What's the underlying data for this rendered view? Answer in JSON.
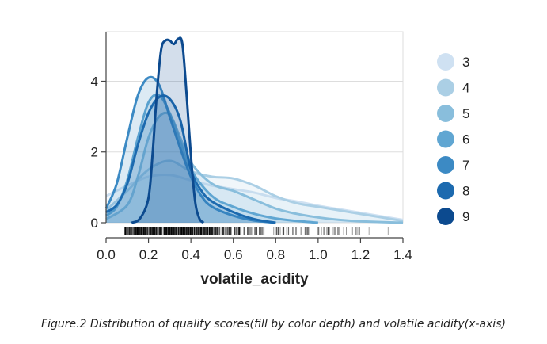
{
  "caption": "Figure.2 Distribution of quality scores(fill by color depth) and volatile acidity(x-axis)",
  "chart_data": {
    "type": "area",
    "xlabel": "volatile_acidity",
    "ylabel": "",
    "xlim": [
      0.0,
      1.4
    ],
    "ylim": [
      0,
      5.4
    ],
    "x_ticks": [
      "0.0",
      "0.2",
      "0.4",
      "0.6",
      "0.8",
      "1.0",
      "1.2",
      "1.4"
    ],
    "y_ticks": [
      "0",
      "2",
      "4"
    ],
    "grid": "horizontal",
    "legend_position": "right",
    "rug": true,
    "series": [
      {
        "name": "3",
        "color": "#cfe1f2",
        "points": [
          [
            0.0,
            0.75
          ],
          [
            0.1,
            1.05
          ],
          [
            0.2,
            1.3
          ],
          [
            0.3,
            1.35
          ],
          [
            0.4,
            1.2
          ],
          [
            0.5,
            1.05
          ],
          [
            0.6,
            0.95
          ],
          [
            0.7,
            0.85
          ],
          [
            0.8,
            0.7
          ],
          [
            0.9,
            0.6
          ],
          [
            1.0,
            0.48
          ],
          [
            1.1,
            0.38
          ],
          [
            1.2,
            0.28
          ],
          [
            1.3,
            0.18
          ],
          [
            1.4,
            0.08
          ]
        ]
      },
      {
        "name": "4",
        "color": "#abcfe5",
        "points": [
          [
            0.0,
            0.35
          ],
          [
            0.1,
            0.9
          ],
          [
            0.2,
            1.5
          ],
          [
            0.3,
            1.75
          ],
          [
            0.4,
            1.45
          ],
          [
            0.5,
            1.3
          ],
          [
            0.6,
            1.25
          ],
          [
            0.7,
            1.05
          ],
          [
            0.8,
            0.75
          ],
          [
            0.9,
            0.55
          ],
          [
            1.0,
            0.45
          ],
          [
            1.1,
            0.35
          ],
          [
            1.2,
            0.25
          ],
          [
            1.3,
            0.15
          ],
          [
            1.4,
            0.05
          ]
        ]
      },
      {
        "name": "5",
        "color": "#89bedc",
        "points": [
          [
            0.0,
            0.1
          ],
          [
            0.1,
            0.5
          ],
          [
            0.15,
            1.3
          ],
          [
            0.2,
            2.4
          ],
          [
            0.25,
            3.0
          ],
          [
            0.3,
            3.05
          ],
          [
            0.35,
            2.4
          ],
          [
            0.4,
            1.7
          ],
          [
            0.5,
            1.1
          ],
          [
            0.6,
            0.9
          ],
          [
            0.7,
            0.65
          ],
          [
            0.8,
            0.4
          ],
          [
            0.9,
            0.25
          ],
          [
            1.0,
            0.15
          ],
          [
            1.1,
            0.08
          ],
          [
            1.2,
            0.04
          ],
          [
            1.4,
            0.0
          ]
        ]
      },
      {
        "name": "6",
        "color": "#60a6d2",
        "points": [
          [
            0.0,
            0.2
          ],
          [
            0.05,
            0.45
          ],
          [
            0.1,
            1.2
          ],
          [
            0.15,
            2.4
          ],
          [
            0.2,
            3.4
          ],
          [
            0.25,
            3.6
          ],
          [
            0.3,
            3.1
          ],
          [
            0.35,
            2.3
          ],
          [
            0.4,
            1.5
          ],
          [
            0.5,
            0.75
          ],
          [
            0.6,
            0.45
          ],
          [
            0.7,
            0.25
          ],
          [
            0.8,
            0.12
          ],
          [
            0.9,
            0.05
          ],
          [
            1.0,
            0.0
          ]
        ]
      },
      {
        "name": "7",
        "color": "#3c8ac4",
        "points": [
          [
            0.0,
            0.4
          ],
          [
            0.05,
            1.1
          ],
          [
            0.1,
            2.4
          ],
          [
            0.15,
            3.6
          ],
          [
            0.2,
            4.1
          ],
          [
            0.25,
            3.9
          ],
          [
            0.3,
            3.0
          ],
          [
            0.35,
            2.1
          ],
          [
            0.4,
            1.3
          ],
          [
            0.45,
            0.75
          ],
          [
            0.5,
            0.45
          ],
          [
            0.6,
            0.2
          ],
          [
            0.7,
            0.06
          ],
          [
            0.8,
            0.0
          ]
        ]
      },
      {
        "name": "8",
        "color": "#1c6aaf",
        "points": [
          [
            0.0,
            0.3
          ],
          [
            0.05,
            0.5
          ],
          [
            0.1,
            1.1
          ],
          [
            0.15,
            2.2
          ],
          [
            0.2,
            3.1
          ],
          [
            0.25,
            3.55
          ],
          [
            0.3,
            3.5
          ],
          [
            0.35,
            2.9
          ],
          [
            0.4,
            1.5
          ],
          [
            0.45,
            0.9
          ],
          [
            0.5,
            0.6
          ],
          [
            0.6,
            0.3
          ],
          [
            0.7,
            0.1
          ],
          [
            0.8,
            0.0
          ]
        ]
      },
      {
        "name": "9",
        "color": "#0c4a8f",
        "points": [
          [
            0.12,
            0.0
          ],
          [
            0.16,
            0.12
          ],
          [
            0.2,
            0.7
          ],
          [
            0.22,
            2.0
          ],
          [
            0.24,
            3.7
          ],
          [
            0.26,
            4.9
          ],
          [
            0.28,
            5.15
          ],
          [
            0.3,
            5.15
          ],
          [
            0.32,
            5.05
          ],
          [
            0.34,
            5.2
          ],
          [
            0.36,
            5.05
          ],
          [
            0.38,
            3.6
          ],
          [
            0.4,
            1.9
          ],
          [
            0.42,
            0.6
          ],
          [
            0.44,
            0.12
          ],
          [
            0.46,
            0.0
          ]
        ]
      }
    ]
  }
}
